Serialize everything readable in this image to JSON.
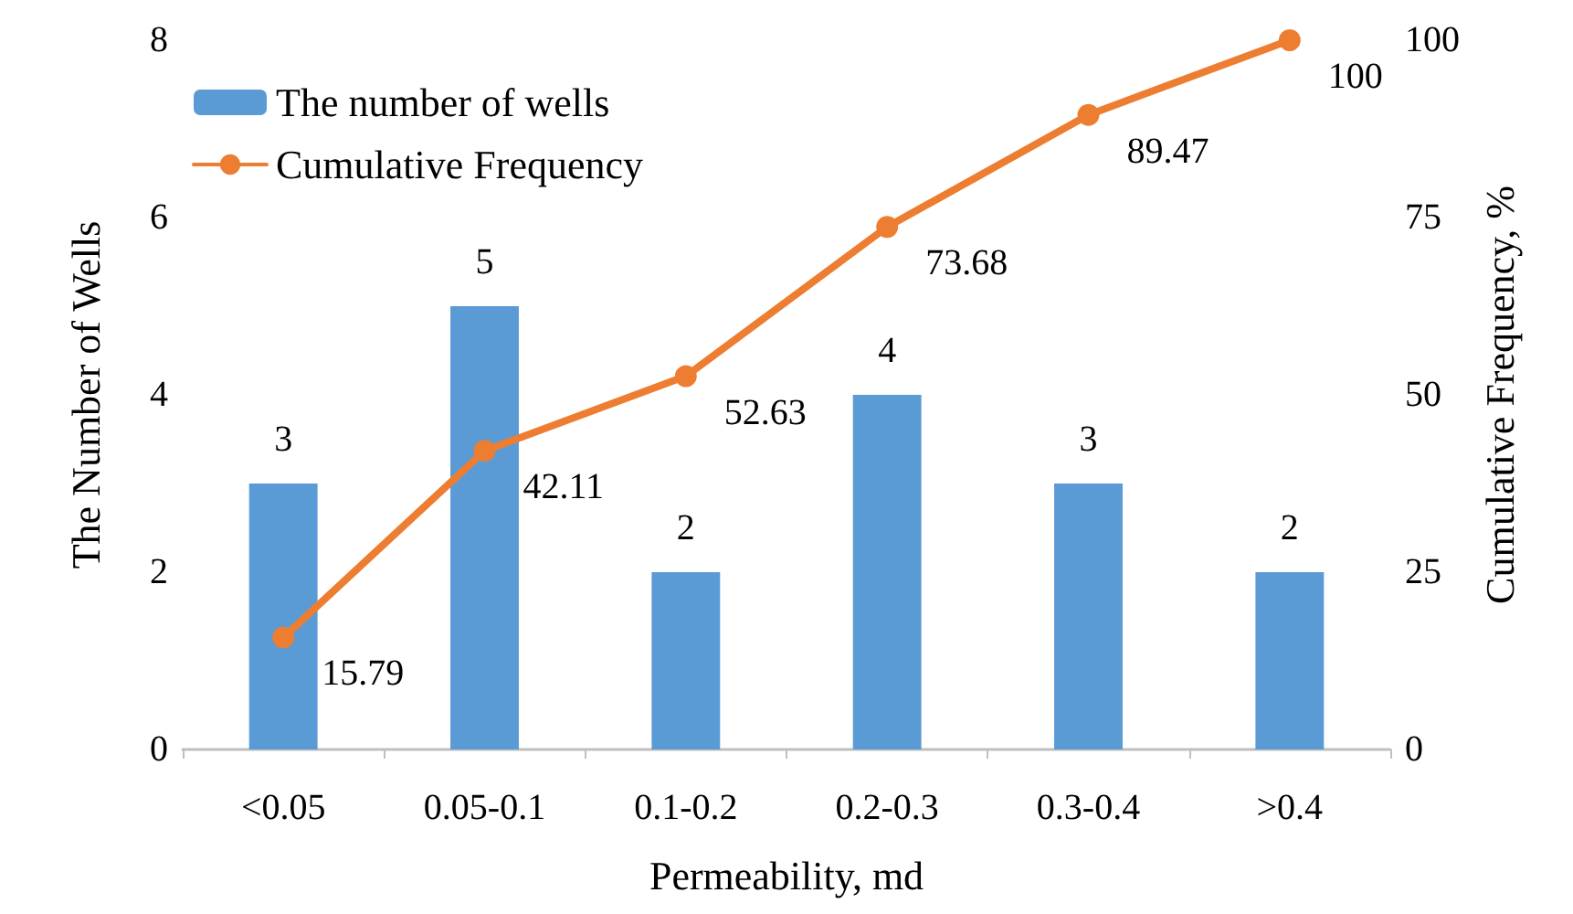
{
  "chart_data": {
    "type": "bar",
    "xlabel": "Permeability, md",
    "ylabel": "The Number of Wells",
    "y2label": "Cumulative Frequency, %",
    "categories": [
      "<0.05",
      "0.05-0.1",
      "0.1-0.2",
      "0.2-0.3",
      "0.3-0.4",
      ">0.4"
    ],
    "series": [
      {
        "name": "The number of wells",
        "color": "#5b9bd5",
        "values": [
          3,
          5,
          2,
          4,
          3,
          2
        ]
      },
      {
        "name": "Cumulative Frequency",
        "type": "line",
        "axis": "y2",
        "color": "#ed7d31",
        "values": [
          15.79,
          42.11,
          52.63,
          73.68,
          89.47,
          100
        ]
      }
    ],
    "ylim": [
      0,
      8
    ],
    "yticks": [
      0,
      2,
      4,
      6,
      8
    ],
    "y2lim": [
      0,
      100
    ],
    "y2ticks": [
      0,
      25,
      50,
      75,
      100
    ],
    "grid": false,
    "legend": "top left",
    "marker": "circle",
    "line_style": "solid",
    "data_labels": true
  }
}
